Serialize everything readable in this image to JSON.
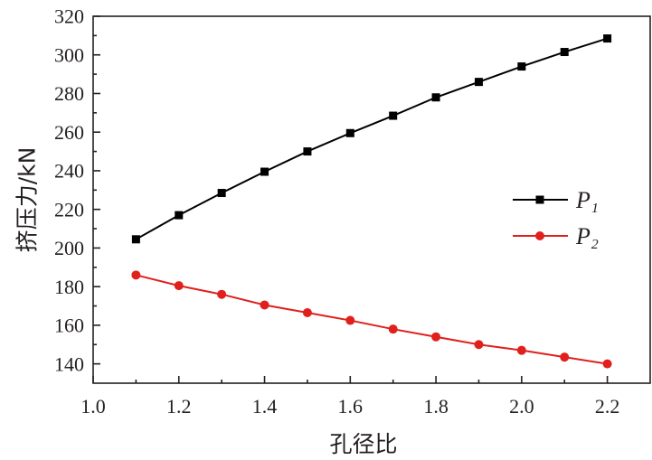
{
  "chart_data": {
    "type": "line",
    "title": "",
    "xlabel": "孔径比",
    "ylabel": "挤压力/kN",
    "xlim": [
      1.0,
      2.3
    ],
    "ylim": [
      130,
      320
    ],
    "xticks": [
      1.0,
      1.2,
      1.4,
      1.6,
      1.8,
      2.0,
      2.2
    ],
    "xtick_labels": [
      "1.0",
      "1.2",
      "1.4",
      "1.6",
      "1.8",
      "2.0",
      "2.2"
    ],
    "yticks": [
      140,
      160,
      180,
      200,
      220,
      240,
      260,
      280,
      300,
      320
    ],
    "ytick_labels": [
      "140",
      "160",
      "180",
      "200",
      "220",
      "240",
      "260",
      "280",
      "300",
      "320"
    ],
    "grid": false,
    "legend": "right",
    "x": [
      1.1,
      1.2,
      1.3,
      1.4,
      1.5,
      1.6,
      1.7,
      1.8,
      1.9,
      2.0,
      2.1,
      2.2
    ],
    "series": [
      {
        "name": "P₁",
        "color": "#000000",
        "marker": "square",
        "values": [
          204.5,
          217,
          228.5,
          239.5,
          250,
          259.5,
          268.5,
          278,
          286,
          294,
          301.5,
          308.5
        ]
      },
      {
        "name": "P₂",
        "color": "#e0201c",
        "marker": "circle",
        "values": [
          186,
          180.5,
          176,
          170.5,
          166.5,
          162.5,
          158,
          154,
          150,
          147,
          143.5,
          140
        ]
      }
    ]
  }
}
